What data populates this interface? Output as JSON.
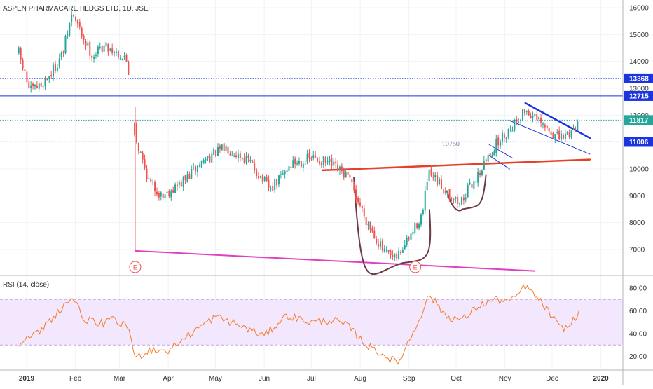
{
  "colors": {
    "up": "#26a69a",
    "down": "#ef5350",
    "grid": "#f0f3fa",
    "rsi_line": "#f57c2a",
    "rsi_band": "#f3e7fd",
    "rsi_band_border": "#c9a2e8",
    "support": "#e83f2a",
    "downtrend": "#e040c0",
    "channel": "#1a34e0",
    "cup": "#6b3a44",
    "level_blue": "#1a34e0",
    "last_price": "#26a69a"
  },
  "chart_data": [
    {
      "type": "candlestick",
      "title": "ASPEN PHARMACARE HLDGS LTD, 1D, JSE",
      "xlabel": "",
      "ylabel": "",
      "ylim": [
        5800,
        16300
      ],
      "y_ticks": [
        7000,
        8000,
        9000,
        10000,
        11000,
        12000,
        13000,
        14000,
        15000,
        16000
      ],
      "x_tick_labels": [
        "2019",
        "Feb",
        "Mar",
        "Apr",
        "May",
        "Jun",
        "Jul",
        "Aug",
        "Sep",
        "Oct",
        "Nov",
        "Dec",
        "2020"
      ],
      "x_tick_dates": [
        "2019-01-01",
        "2019-02-01",
        "2019-03-01",
        "2019-04-01",
        "2019-05-01",
        "2019-06-01",
        "2019-07-01",
        "2019-08-01",
        "2019-09-01",
        "2019-10-01",
        "2019-11-01",
        "2019-12-01",
        "2020-01-01"
      ],
      "price_path": [
        {
          "date": "2018-12-27",
          "price": 14300
        },
        {
          "date": "2019-01-03",
          "price": 12900
        },
        {
          "date": "2019-01-10",
          "price": 13100
        },
        {
          "date": "2019-01-17",
          "price": 13600
        },
        {
          "date": "2019-01-24",
          "price": 14300
        },
        {
          "date": "2019-01-30",
          "price": 15800
        },
        {
          "date": "2019-02-05",
          "price": 15000
        },
        {
          "date": "2019-02-12",
          "price": 14200
        },
        {
          "date": "2019-02-19",
          "price": 14600
        },
        {
          "date": "2019-02-26",
          "price": 14400
        },
        {
          "date": "2019-03-06",
          "price": 14000
        },
        {
          "date": "2019-03-11",
          "price": 11200
        },
        {
          "date": "2019-03-20",
          "price": 9500
        },
        {
          "date": "2019-03-28",
          "price": 9000
        },
        {
          "date": "2019-04-10",
          "price": 9500
        },
        {
          "date": "2019-04-25",
          "price": 10400
        },
        {
          "date": "2019-05-08",
          "price": 10800
        },
        {
          "date": "2019-05-22",
          "price": 10300
        },
        {
          "date": "2019-06-05",
          "price": 9200
        },
        {
          "date": "2019-06-18",
          "price": 10200
        },
        {
          "date": "2019-07-02",
          "price": 10400
        },
        {
          "date": "2019-07-12",
          "price": 10200
        },
        {
          "date": "2019-07-24",
          "price": 9700
        },
        {
          "date": "2019-08-05",
          "price": 8100
        },
        {
          "date": "2019-08-16",
          "price": 6900
        },
        {
          "date": "2019-08-23",
          "price": 6600
        },
        {
          "date": "2019-09-02",
          "price": 7500
        },
        {
          "date": "2019-09-10",
          "price": 8400
        },
        {
          "date": "2019-09-13",
          "price": 9800
        },
        {
          "date": "2019-09-25",
          "price": 9200
        },
        {
          "date": "2019-10-03",
          "price": 8700
        },
        {
          "date": "2019-10-15",
          "price": 9800
        },
        {
          "date": "2019-10-25",
          "price": 10800
        },
        {
          "date": "2019-11-04",
          "price": 11500
        },
        {
          "date": "2019-11-14",
          "price": 12200
        },
        {
          "date": "2019-11-25",
          "price": 11600
        },
        {
          "date": "2019-12-06",
          "price": 11100
        },
        {
          "date": "2019-12-13",
          "price": 11400
        },
        {
          "date": "2019-12-18",
          "price": 11817
        }
      ],
      "horizontal_levels": [
        {
          "value": 13368,
          "label": "13368",
          "style": "dotted"
        },
        {
          "value": 12715,
          "label": "12715",
          "style": "solid"
        },
        {
          "value": 11817,
          "label": "11817",
          "style": "dotted",
          "last_price": true
        },
        {
          "value": 11006,
          "label": "11006",
          "style": "dotted"
        }
      ],
      "annotations": [
        {
          "text": "10750",
          "date": "2019-09-22",
          "price": 10950
        }
      ],
      "earnings_markers": [
        {
          "label": "E",
          "date": "2019-03-11"
        },
        {
          "label": "E",
          "date": "2019-09-05"
        }
      ],
      "drawings": {
        "support_line": [
          {
            "date": "2019-07-08",
            "price": 9950
          },
          {
            "date": "2019-12-25",
            "price": 10350
          }
        ],
        "downtrend_line": [
          {
            "date": "2019-03-11",
            "price": 6950
          },
          {
            "date": "2019-11-20",
            "price": 6200
          }
        ],
        "channel_upper": [
          {
            "date": "2019-11-14",
            "price": 12450
          },
          {
            "date": "2019-12-25",
            "price": 11150
          }
        ],
        "channel_lower": [
          {
            "date": "2019-11-04",
            "price": 11800
          },
          {
            "date": "2019-12-25",
            "price": 10550
          }
        ],
        "flag_upper": [
          {
            "date": "2019-10-22",
            "price": 10900
          },
          {
            "date": "2019-11-06",
            "price": 10400
          }
        ],
        "flag_lower": [
          {
            "date": "2019-10-22",
            "price": 10500
          },
          {
            "date": "2019-11-04",
            "price": 9999
          }
        ],
        "cup_left": {
          "date": "2019-07-28",
          "price": 9700
        },
        "cup_bottom": {
          "date": "2019-08-28",
          "price": 6500
        },
        "cup_right": {
          "date": "2019-09-14",
          "price": 8500
        },
        "handle_start": {
          "date": "2019-09-25",
          "price": 9200
        },
        "handle_bottom": {
          "date": "2019-10-05",
          "price": 8500
        },
        "handle_end": {
          "date": "2019-10-20",
          "price": 9800
        },
        "earnings_vline": {
          "date": "2019-03-11",
          "from": 6950,
          "to": 12300
        }
      }
    },
    {
      "type": "line",
      "title": "RSI (14, close)",
      "xlabel": "",
      "ylabel": "",
      "ylim": [
        10,
        90
      ],
      "y_ticks": [
        20,
        40,
        60,
        80
      ],
      "y_tick_labels": [
        "20.00",
        "40.00",
        "60.00",
        "80.00"
      ],
      "band": [
        30,
        70
      ],
      "series": [
        {
          "points": [
            {
              "date": "2018-12-27",
              "value": 32
            },
            {
              "date": "2019-01-08",
              "value": 40
            },
            {
              "date": "2019-01-18",
              "value": 55
            },
            {
              "date": "2019-01-30",
              "value": 72
            },
            {
              "date": "2019-02-06",
              "value": 54
            },
            {
              "date": "2019-02-15",
              "value": 48
            },
            {
              "date": "2019-02-25",
              "value": 52
            },
            {
              "date": "2019-03-07",
              "value": 45
            },
            {
              "date": "2019-03-11",
              "value": 18
            },
            {
              "date": "2019-03-20",
              "value": 26
            },
            {
              "date": "2019-04-01",
              "value": 25
            },
            {
              "date": "2019-04-15",
              "value": 40
            },
            {
              "date": "2019-05-01",
              "value": 55
            },
            {
              "date": "2019-05-15",
              "value": 48
            },
            {
              "date": "2019-06-01",
              "value": 38
            },
            {
              "date": "2019-06-15",
              "value": 56
            },
            {
              "date": "2019-07-01",
              "value": 50
            },
            {
              "date": "2019-07-15",
              "value": 52
            },
            {
              "date": "2019-07-25",
              "value": 46
            },
            {
              "date": "2019-08-05",
              "value": 30
            },
            {
              "date": "2019-08-15",
              "value": 22
            },
            {
              "date": "2019-08-25",
              "value": 14
            },
            {
              "date": "2019-09-05",
              "value": 45
            },
            {
              "date": "2019-09-14",
              "value": 74
            },
            {
              "date": "2019-09-25",
              "value": 55
            },
            {
              "date": "2019-10-05",
              "value": 52
            },
            {
              "date": "2019-10-15",
              "value": 64
            },
            {
              "date": "2019-10-25",
              "value": 70
            },
            {
              "date": "2019-11-05",
              "value": 68
            },
            {
              "date": "2019-11-14",
              "value": 82
            },
            {
              "date": "2019-11-25",
              "value": 66
            },
            {
              "date": "2019-12-06",
              "value": 45
            },
            {
              "date": "2019-12-12",
              "value": 46
            },
            {
              "date": "2019-12-18",
              "value": 60
            }
          ]
        }
      ]
    }
  ]
}
